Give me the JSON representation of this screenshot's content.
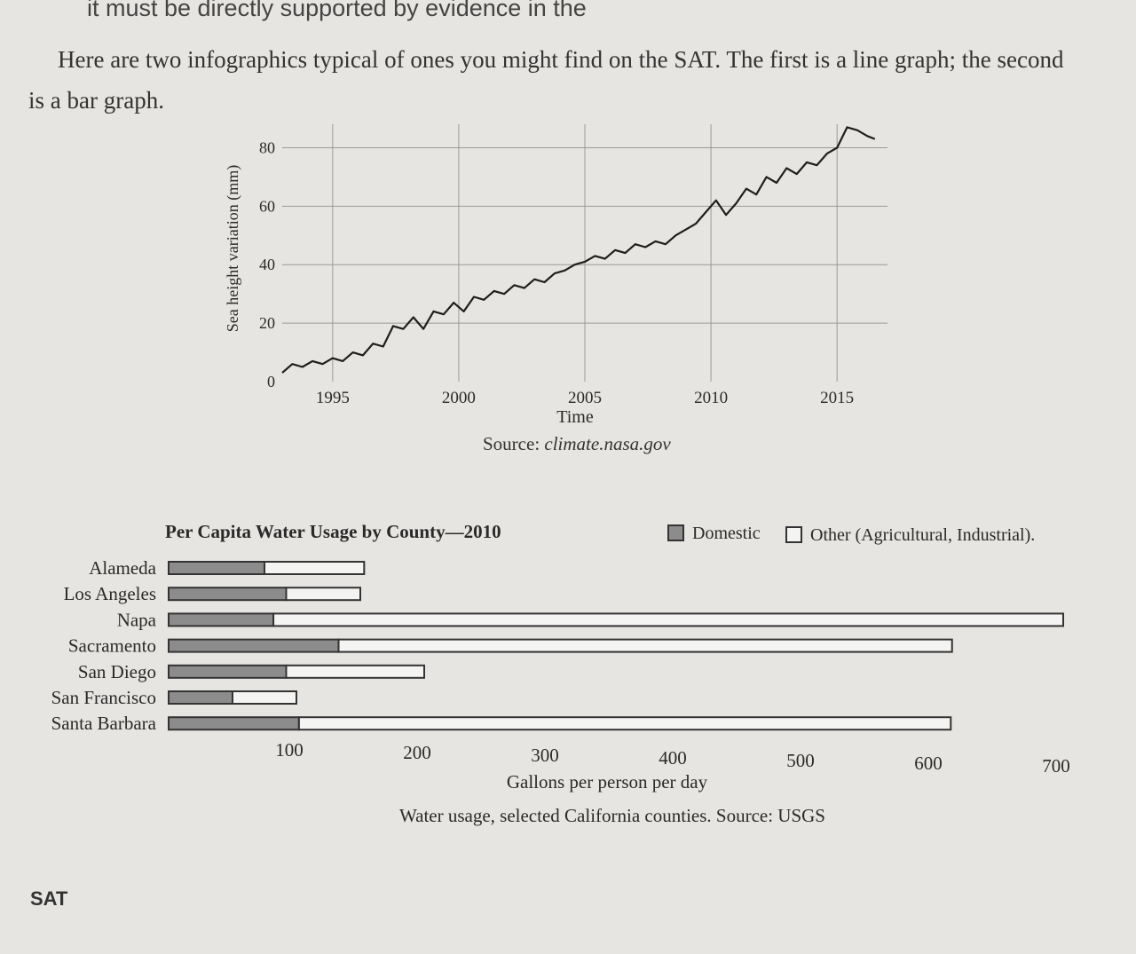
{
  "page": {
    "top_fragment": "it must be directly supported by evidence in the",
    "intro": "Here are two infographics typical of ones you might find on the SAT. The first is a line graph; the second is a bar graph.",
    "footer": "SAT"
  },
  "chart_data": [
    {
      "type": "line",
      "title": "",
      "xlabel": "Time",
      "ylabel": "Sea height variation (mm)",
      "source_label": "Source:",
      "source": "climate.nasa.gov",
      "xlim": [
        1993,
        2017
      ],
      "ylim": [
        0,
        85
      ],
      "x_ticks": [
        "1995",
        "2000",
        "2005",
        "2010",
        "2015"
      ],
      "y_ticks": [
        "0",
        "20",
        "40",
        "60",
        "80"
      ],
      "grid": true,
      "series": [
        {
          "x": [
            1993.0,
            1993.4,
            1993.8,
            1994.2,
            1994.6,
            1995.0,
            1995.4,
            1995.8,
            1996.2,
            1996.6,
            1997.0,
            1997.4,
            1997.8,
            1998.2,
            1998.6,
            1999.0,
            1999.4,
            1999.8,
            2000.2,
            2000.6,
            2001.0,
            2001.4,
            2001.8,
            2002.2,
            2002.6,
            2003.0,
            2003.4,
            2003.8,
            2004.2,
            2004.6,
            2005.0,
            2005.4,
            2005.8,
            2006.2,
            2006.6,
            2007.0,
            2007.4,
            2007.8,
            2008.2,
            2008.6,
            2009.0,
            2009.4,
            2009.8,
            2010.2,
            2010.6,
            2011.0,
            2011.4,
            2011.8,
            2012.2,
            2012.6,
            2013.0,
            2013.4,
            2013.8,
            2014.2,
            2014.6,
            2015.0,
            2015.4,
            2015.8,
            2016.2,
            2016.5
          ],
          "y": [
            3,
            6,
            5,
            7,
            6,
            8,
            7,
            10,
            9,
            13,
            12,
            19,
            18,
            22,
            18,
            24,
            23,
            27,
            24,
            29,
            28,
            31,
            30,
            33,
            32,
            35,
            34,
            37,
            38,
            40,
            41,
            43,
            42,
            45,
            44,
            47,
            46,
            48,
            47,
            50,
            52,
            54,
            58,
            62,
            57,
            61,
            66,
            64,
            70,
            68,
            73,
            71,
            75,
            74,
            78,
            80,
            87,
            86,
            84,
            83
          ]
        }
      ]
    },
    {
      "type": "bar",
      "stacked": true,
      "orientation": "horizontal",
      "title": "Per Capita Water Usage by County—2010",
      "xlabel": "Gallons per person per day",
      "caption": "Water usage, selected California counties. Source: USGS",
      "xlim": [
        0,
        700
      ],
      "x_ticks": [
        "100",
        "200",
        "300",
        "400",
        "500",
        "600",
        "700"
      ],
      "categories": [
        "Alameda",
        "Los Angeles",
        "Napa",
        "Sacramento",
        "San Diego",
        "San Francisco",
        "Santa Barbara"
      ],
      "legend_position": "top-right",
      "series": [
        {
          "name": "Domestic",
          "color": "#8c8c8c",
          "values": [
            75,
            92,
            82,
            133,
            92,
            50,
            102
          ]
        },
        {
          "name": "Other (Agricultural, Industrial).",
          "color": "#f4f4f2",
          "values": [
            78,
            58,
            618,
            480,
            108,
            50,
            510
          ]
        }
      ]
    }
  ]
}
